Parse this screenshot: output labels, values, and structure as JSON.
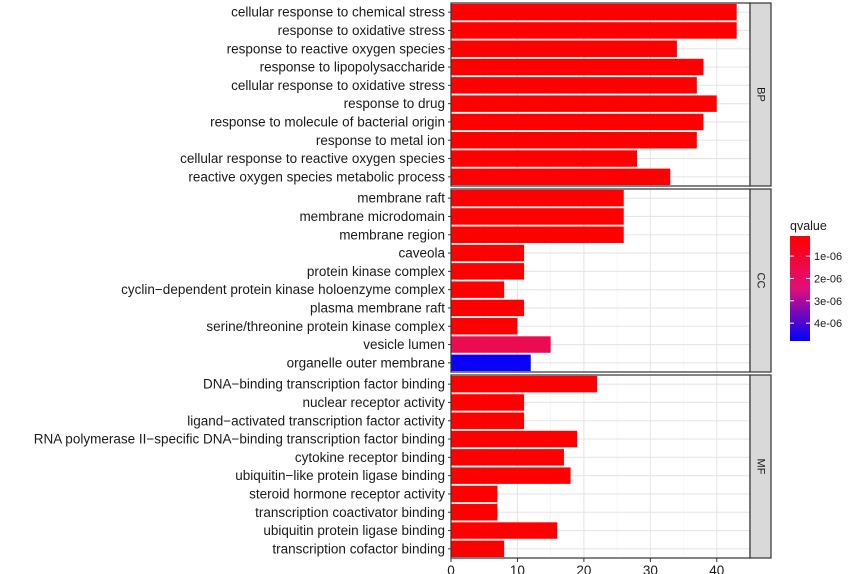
{
  "chart_data": {
    "type": "bar",
    "orientation": "horizontal",
    "xlim": [
      0,
      45
    ],
    "x_ticks": [
      "0",
      "10",
      "20",
      "30",
      "40"
    ],
    "x_tick_values": [
      0,
      10,
      20,
      30,
      40
    ],
    "grid": true,
    "legend": {
      "title": "qvalue",
      "placement": "right",
      "ticks": [
        "1e-06",
        "2e-06",
        "3e-06",
        "4e-06"
      ],
      "tick_values": [
        1e-06,
        2e-06,
        3e-06,
        4e-06
      ],
      "range": [
        1e-07,
        4.8e-06
      ],
      "low_color": "#ff0000",
      "high_color": "#0000ff"
    },
    "facets": [
      {
        "name": "BP",
        "categories": [
          "cellular response to chemical stress",
          "response to oxidative stress",
          "response to reactive oxygen species",
          "response to lipopolysaccharide",
          "cellular response to oxidative stress",
          "response to drug",
          "response to molecule of bacterial origin",
          "response to metal ion",
          "cellular response to reactive oxygen species",
          "reactive oxygen species metabolic process"
        ],
        "values": [
          43,
          43,
          34,
          38,
          37,
          40,
          38,
          37,
          28,
          33
        ],
        "qvalues": [
          1e-07,
          1e-07,
          1e-07,
          1e-07,
          1e-07,
          1e-07,
          1e-07,
          1e-07,
          1e-07,
          1e-07
        ]
      },
      {
        "name": "CC",
        "categories": [
          "membrane raft",
          "membrane microdomain",
          "membrane region",
          "caveola",
          "protein kinase complex",
          "cyclin−dependent protein kinase holoenzyme complex",
          "plasma membrane raft",
          "serine/threonine protein kinase complex",
          "vesicle lumen",
          "organelle outer membrane"
        ],
        "values": [
          26,
          26,
          26,
          11,
          11,
          8,
          11,
          10,
          15,
          12
        ],
        "qvalues": [
          1e-07,
          1e-07,
          1e-07,
          1e-07,
          1e-07,
          1e-07,
          1e-07,
          1e-07,
          1.7e-06,
          4.7e-06
        ]
      },
      {
        "name": "MF",
        "categories": [
          "DNA−binding transcription factor binding",
          "nuclear receptor activity",
          "ligand−activated transcription factor activity",
          "RNA polymerase II−specific DNA−binding transcription factor binding",
          "cytokine receptor binding",
          "ubiquitin−like protein ligase binding",
          "steroid hormone receptor activity",
          "transcription coactivator binding",
          "ubiquitin protein ligase binding",
          "transcription cofactor binding"
        ],
        "values": [
          22,
          11,
          11,
          19,
          17,
          18,
          7,
          7,
          16,
          8
        ],
        "qvalues": [
          1e-07,
          1e-07,
          1e-07,
          1e-07,
          1e-07,
          1e-07,
          1e-07,
          1e-07,
          1e-07,
          1e-07
        ]
      }
    ]
  }
}
